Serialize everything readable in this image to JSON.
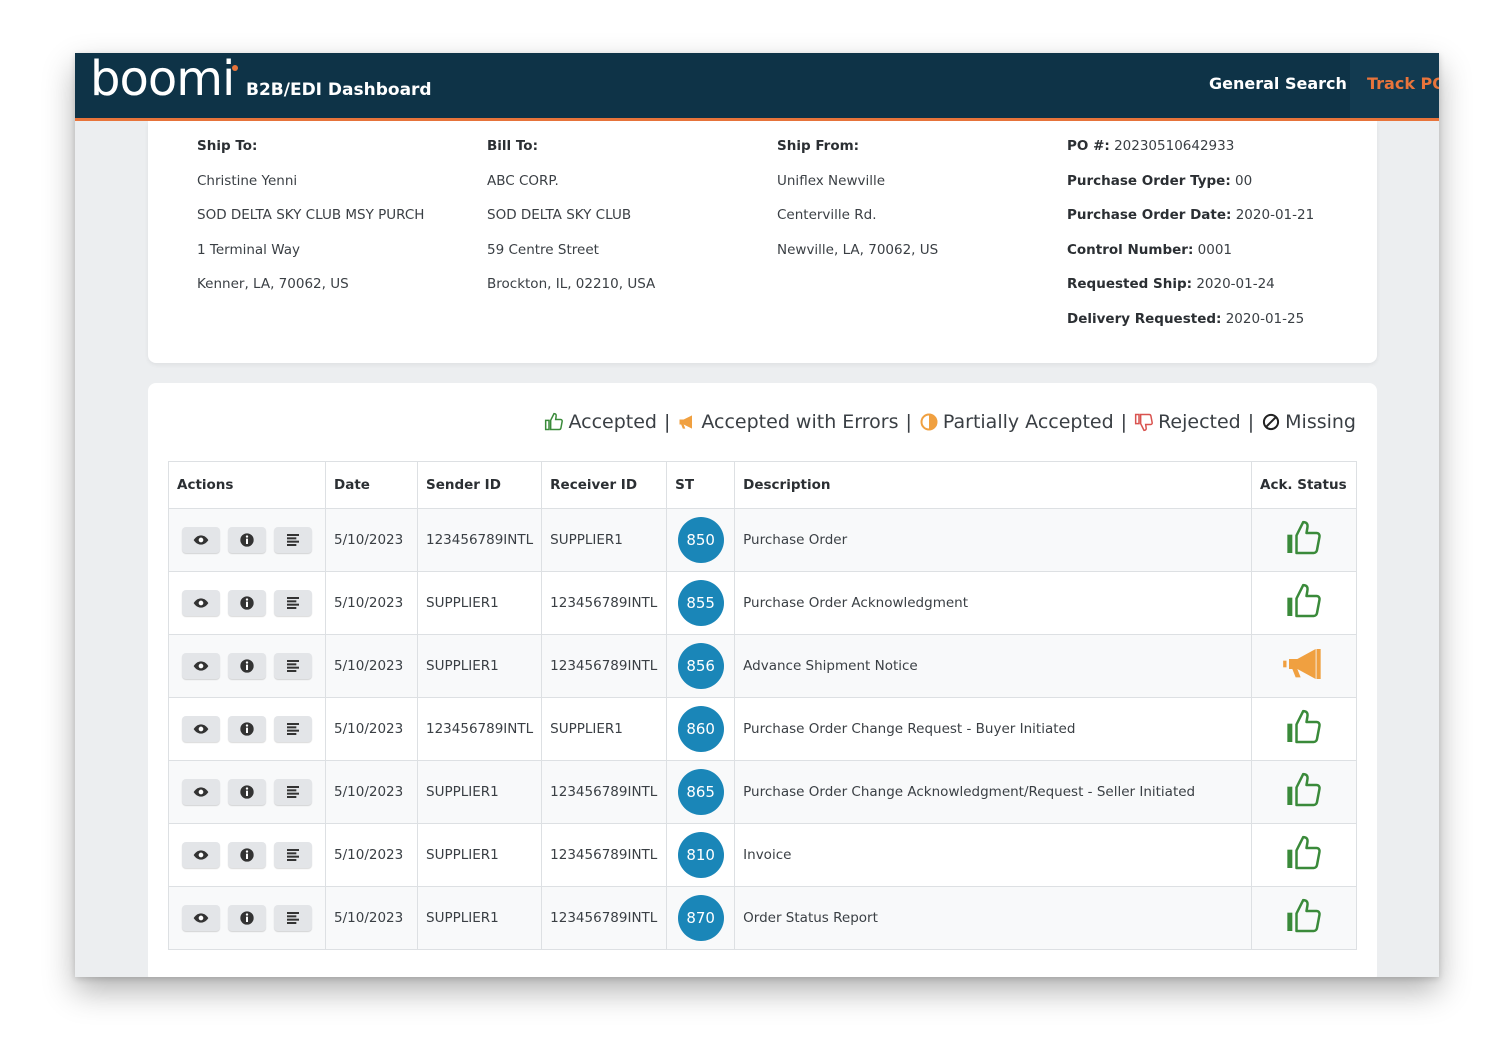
{
  "header": {
    "logo": "boomi",
    "app_name": "B2B/EDI Dashboard",
    "nav": [
      {
        "label": "General Search"
      },
      {
        "label": "Track PO"
      }
    ],
    "accent_color": "#e8743b",
    "bar_color": "#0e3347"
  },
  "order": {
    "ship_to": {
      "label": "Ship To:",
      "lines": [
        "Christine Yenni",
        "SOD DELTA SKY CLUB MSY PURCH",
        "1 Terminal Way",
        "Kenner, LA, 70062, US"
      ]
    },
    "bill_to": {
      "label": "Bill To:",
      "lines": [
        "ABC CORP.",
        "SOD DELTA SKY CLUB",
        "59 Centre Street",
        "Brockton, IL, 02210, USA"
      ]
    },
    "ship_from": {
      "label": "Ship From:",
      "lines": [
        "Uniflex Newville",
        "Centerville Rd.",
        "Newville, LA, 70062, US"
      ]
    },
    "details": [
      {
        "label": "PO #:",
        "value": "20230510642933"
      },
      {
        "label": "Purchase Order Type:",
        "value": "00"
      },
      {
        "label": "Purchase Order Date:",
        "value": "2020-01-21"
      },
      {
        "label": "Control Number:",
        "value": "0001"
      },
      {
        "label": "Requested Ship:",
        "value": "2020-01-24"
      },
      {
        "label": "Delivery Requested:",
        "value": "2020-01-25"
      }
    ]
  },
  "legend": {
    "accepted": "Accepted",
    "accepted_errors": "Accepted with Errors",
    "partial": "Partially Accepted",
    "rejected": "Rejected",
    "missing": "Missing",
    "separator": "|"
  },
  "table": {
    "columns": [
      "Actions",
      "Date",
      "Sender ID",
      "Receiver ID",
      "ST",
      "Description",
      "Ack. Status"
    ],
    "rows": [
      {
        "date": "5/10/2023",
        "sender": "123456789INTL",
        "receiver": "SUPPLIER1",
        "st": "850",
        "description": "Purchase Order",
        "ack": "accepted-icon"
      },
      {
        "date": "5/10/2023",
        "sender": "SUPPLIER1",
        "receiver": "123456789INTL",
        "st": "855",
        "description": "Purchase Order Acknowledgment",
        "ack": "accepted-icon"
      },
      {
        "date": "5/10/2023",
        "sender": "SUPPLIER1",
        "receiver": "123456789INTL",
        "st": "856",
        "description": "Advance Shipment Notice",
        "ack": "accepted-with-errors-icon"
      },
      {
        "date": "5/10/2023",
        "sender": "123456789INTL",
        "receiver": "SUPPLIER1",
        "st": "860",
        "description": "Purchase Order Change Request - Buyer Initiated",
        "ack": "accepted-icon"
      },
      {
        "date": "5/10/2023",
        "sender": "SUPPLIER1",
        "receiver": "123456789INTL",
        "st": "865",
        "description": "Purchase Order Change Acknowledgment/Request - Seller Initiated",
        "ack": "accepted-icon"
      },
      {
        "date": "5/10/2023",
        "sender": "SUPPLIER1",
        "receiver": "123456789INTL",
        "st": "810",
        "description": "Invoice",
        "ack": "accepted-icon"
      },
      {
        "date": "5/10/2023",
        "sender": "SUPPLIER1",
        "receiver": "123456789INTL",
        "st": "870",
        "description": "Order Status Report",
        "ack": "accepted-icon"
      }
    ]
  },
  "colors": {
    "accepted": "#3a8a3a",
    "warning": "#f0a040",
    "badge": "#1a86b8"
  }
}
